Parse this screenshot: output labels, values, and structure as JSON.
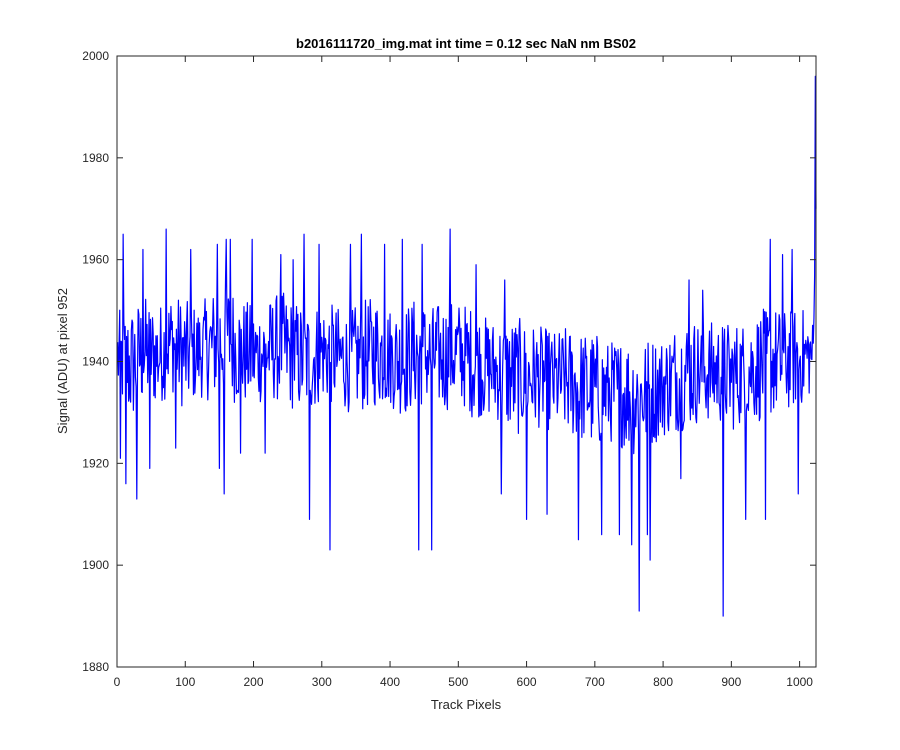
{
  "chart_data": {
    "type": "line",
    "title": "b2016111720_img.mat int time = 0.12 sec  NaN nm BS02",
    "xlabel": "Track Pixels",
    "ylabel": "Signal (ADU) at pixel 952",
    "xlim": [
      0,
      1024
    ],
    "ylim": [
      1880,
      2000
    ],
    "xticks": [
      0,
      100,
      200,
      300,
      400,
      500,
      600,
      700,
      800,
      900,
      1000
    ],
    "yticks": [
      1880,
      1900,
      1920,
      1940,
      1960,
      1980,
      2000
    ],
    "grid": false,
    "line_color": "#0000ff",
    "series": [
      {
        "x": [
          1,
          20,
          40,
          60,
          80,
          100,
          120,
          140,
          160,
          180,
          200,
          220,
          240,
          260,
          280,
          300,
          320,
          340,
          360,
          380,
          400,
          420,
          440,
          460,
          480,
          500,
          520,
          540,
          560,
          580,
          600,
          620,
          640,
          660,
          680,
          700,
          720,
          740,
          760,
          780,
          800,
          820,
          840,
          860,
          880,
          900,
          920,
          940,
          960,
          980,
          1000,
          1010,
          1015,
          1020,
          1024
        ],
        "mean": [
          1941,
          1939,
          1942,
          1941,
          1944,
          1941,
          1942,
          1943,
          1945,
          1942,
          1941,
          1942,
          1943,
          1941,
          1940,
          1942,
          1941,
          1940,
          1941,
          1942,
          1941,
          1940,
          1942,
          1941,
          1941,
          1942,
          1940,
          1939,
          1938,
          1937,
          1937,
          1937,
          1936,
          1936,
          1935,
          1934,
          1934,
          1934,
          1933,
          1934,
          1935,
          1937,
          1938,
          1938,
          1938,
          1937,
          1938,
          1939,
          1940,
          1940,
          1941,
          1941,
          1941,
          1942,
          1970
        ],
        "amp": [
          9,
          12,
          11,
          10,
          10,
          11,
          9,
          11,
          12,
          11,
          10,
          10,
          11,
          11,
          11,
          10,
          10,
          10,
          11,
          11,
          10,
          11,
          11,
          10,
          11,
          10,
          11,
          10,
          10,
          12,
          11,
          10,
          10,
          11,
          11,
          12,
          10,
          11,
          12,
          11,
          10,
          11,
          11,
          10,
          10,
          11,
          10,
          11,
          11,
          10,
          10,
          9,
          8,
          6,
          0
        ]
      }
    ],
    "extremes": [
      {
        "x": 5,
        "y": 1921
      },
      {
        "x": 9,
        "y": 1965
      },
      {
        "x": 13,
        "y": 1916
      },
      {
        "x": 29,
        "y": 1913
      },
      {
        "x": 38,
        "y": 1962
      },
      {
        "x": 48,
        "y": 1919
      },
      {
        "x": 72,
        "y": 1966
      },
      {
        "x": 86,
        "y": 1923
      },
      {
        "x": 108,
        "y": 1962
      },
      {
        "x": 147,
        "y": 1963
      },
      {
        "x": 150,
        "y": 1919
      },
      {
        "x": 157,
        "y": 1914
      },
      {
        "x": 160,
        "y": 1964
      },
      {
        "x": 166,
        "y": 1964
      },
      {
        "x": 181,
        "y": 1922
      },
      {
        "x": 198,
        "y": 1964
      },
      {
        "x": 217,
        "y": 1922
      },
      {
        "x": 240,
        "y": 1961
      },
      {
        "x": 258,
        "y": 1960
      },
      {
        "x": 274,
        "y": 1965
      },
      {
        "x": 282,
        "y": 1909
      },
      {
        "x": 296,
        "y": 1963
      },
      {
        "x": 312,
        "y": 1903
      },
      {
        "x": 342,
        "y": 1963
      },
      {
        "x": 358,
        "y": 1965
      },
      {
        "x": 392,
        "y": 1963
      },
      {
        "x": 418,
        "y": 1964
      },
      {
        "x": 442,
        "y": 1903
      },
      {
        "x": 447,
        "y": 1963
      },
      {
        "x": 461,
        "y": 1903
      },
      {
        "x": 488,
        "y": 1966
      },
      {
        "x": 526,
        "y": 1959
      },
      {
        "x": 563,
        "y": 1914
      },
      {
        "x": 568,
        "y": 1956
      },
      {
        "x": 600,
        "y": 1909
      },
      {
        "x": 630,
        "y": 1910
      },
      {
        "x": 676,
        "y": 1905
      },
      {
        "x": 710,
        "y": 1906
      },
      {
        "x": 736,
        "y": 1906
      },
      {
        "x": 754,
        "y": 1904
      },
      {
        "x": 765,
        "y": 1891
      },
      {
        "x": 777,
        "y": 1906
      },
      {
        "x": 781,
        "y": 1901
      },
      {
        "x": 826,
        "y": 1917
      },
      {
        "x": 838,
        "y": 1956
      },
      {
        "x": 858,
        "y": 1954
      },
      {
        "x": 888,
        "y": 1890
      },
      {
        "x": 921,
        "y": 1909
      },
      {
        "x": 950,
        "y": 1909
      },
      {
        "x": 957,
        "y": 1964
      },
      {
        "x": 975,
        "y": 1961
      },
      {
        "x": 989,
        "y": 1962
      },
      {
        "x": 998,
        "y": 1914
      },
      {
        "x": 1023,
        "y": 1996
      }
    ]
  }
}
